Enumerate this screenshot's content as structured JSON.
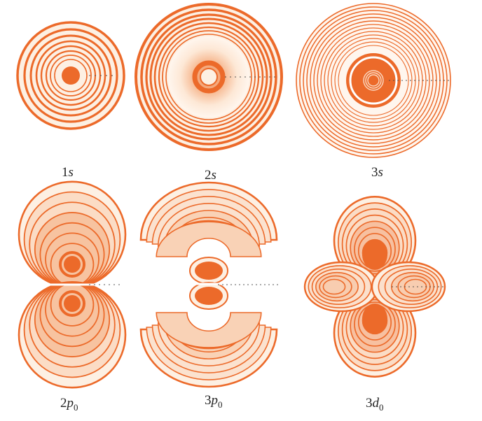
{
  "colors": {
    "orbital": "#ec6a2a",
    "fill_light": "#fdf0e3",
    "fill_mid": "#f7c8a6",
    "fill_strong": "#f08a55",
    "dots": "#444444"
  },
  "orbitals": [
    {
      "id": "1s",
      "label": {
        "n": "1",
        "l": "s",
        "m": ""
      }
    },
    {
      "id": "2s",
      "label": {
        "n": "2",
        "l": "s",
        "m": ""
      }
    },
    {
      "id": "3s",
      "label": {
        "n": "3",
        "l": "s",
        "m": ""
      }
    },
    {
      "id": "2p0",
      "label": {
        "n": "2",
        "l": "p",
        "m": "0"
      }
    },
    {
      "id": "3p0",
      "label": {
        "n": "3",
        "l": "p",
        "m": "0"
      }
    },
    {
      "id": "3d0",
      "label": {
        "n": "3",
        "l": "d",
        "m": "0"
      }
    }
  ]
}
